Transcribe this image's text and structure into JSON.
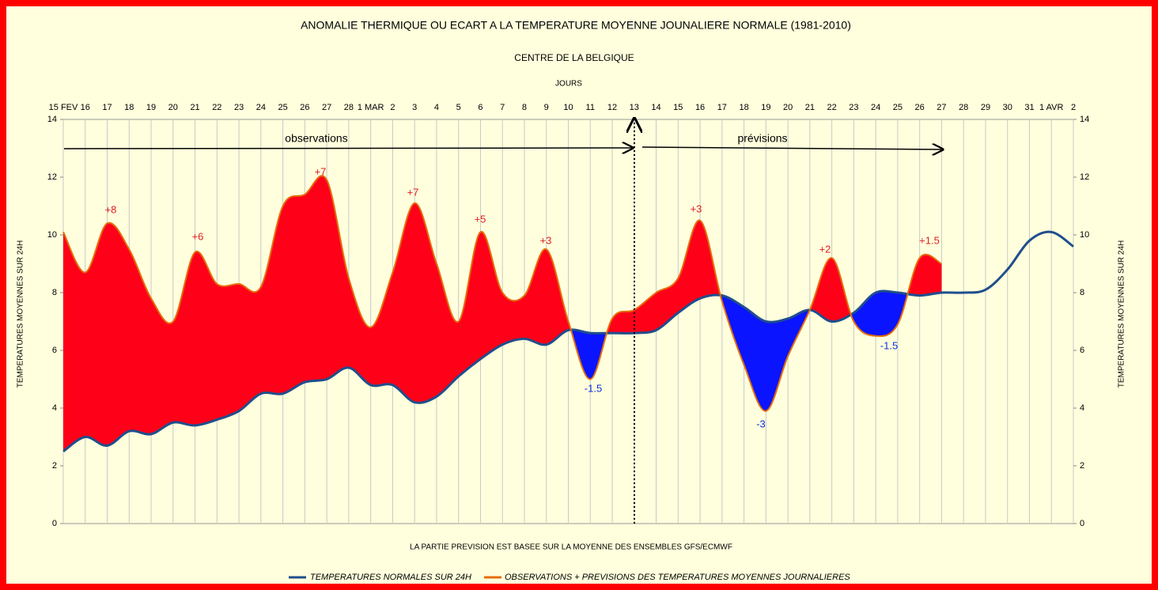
{
  "chart_data": {
    "type": "line",
    "title": "ANOMALIE THERMIQUE OU ECART A LA TEMPERATURE MOYENNE JOUNALIERE NORMALE (1981-2010)",
    "subtitle": "CENTRE DE LA BELGIQUE",
    "xlabel": "JOURS",
    "ylabel": "TEMPERATURES MOYENNES SUR 24H",
    "y2label": "TEMPERATURES MOYENNES SUR 24H",
    "footnote": "LA PARTIE PREVISION EST BASEE SUR LA MOYENNE DES ENSEMBLES GFS/ECMWF",
    "phases": [
      "observations",
      "prévisions"
    ],
    "categories": [
      "15 FEV",
      "16",
      "17",
      "18",
      "19",
      "20",
      "21",
      "22",
      "23",
      "24",
      "25",
      "26",
      "27",
      "28",
      "1 MAR",
      "2",
      "3",
      "4",
      "5",
      "6",
      "7",
      "8",
      "9",
      "10",
      "11",
      "12",
      "13",
      "14",
      "15",
      "16",
      "17",
      "18",
      "19",
      "20",
      "21",
      "22",
      "23",
      "24",
      "25",
      "26",
      "27",
      "28",
      "29",
      "30",
      "31",
      "1 AVR",
      "2"
    ],
    "series": [
      {
        "name": "TEMPERATURES NORMALES SUR 24H",
        "color": "#1f4e8c",
        "values": [
          2.5,
          3.0,
          2.7,
          3.2,
          3.1,
          3.5,
          3.4,
          3.6,
          3.9,
          4.5,
          4.5,
          4.9,
          5.0,
          5.4,
          4.8,
          4.8,
          4.2,
          4.4,
          5.1,
          5.7,
          6.2,
          6.4,
          6.2,
          6.7,
          6.6,
          6.6,
          6.6,
          6.7,
          7.3,
          7.8,
          7.9,
          7.5,
          7.0,
          7.1,
          7.4,
          7.0,
          7.3,
          8.0,
          8.0,
          7.9,
          8.0,
          8.0,
          8.1,
          8.8,
          9.8,
          10.1,
          9.6
        ]
      },
      {
        "name": "OBSERVATIONS + PREVISIONS DES TEMPERATURES MOYENNES JOURNALIERES",
        "color": "#e46c0a",
        "values": [
          10.1,
          8.7,
          10.4,
          9.5,
          7.8,
          7.0,
          9.4,
          8.3,
          8.3,
          8.2,
          11.0,
          11.4,
          11.9,
          8.5,
          6.8,
          8.7,
          11.1,
          9.0,
          7.0,
          10.1,
          8.0,
          7.9,
          9.5,
          7.0,
          5.0,
          7.1,
          7.4,
          8.0,
          8.5,
          10.5,
          7.7,
          5.5,
          3.9,
          5.8,
          7.4,
          9.2,
          7.0,
          6.5,
          6.9,
          9.2,
          9.0,
          null,
          null,
          null,
          null,
          null,
          null
        ]
      }
    ],
    "above_color": "#ff0019",
    "below_color": "#0a14ff",
    "ylim": [
      0,
      14
    ],
    "yticks": [
      0,
      2,
      4,
      6,
      8,
      10,
      12,
      14
    ],
    "y2lim": [
      0,
      14
    ],
    "y2ticks": [
      0,
      2,
      4,
      6,
      8,
      10,
      12,
      14
    ],
    "grid": true,
    "annotations": [
      {
        "text": "+8",
        "color": "#e02020"
      },
      {
        "text": "+6",
        "color": "#e02020"
      },
      {
        "text": "+7",
        "color": "#e02020"
      },
      {
        "text": "+7",
        "color": "#e02020"
      },
      {
        "text": "+5",
        "color": "#e02020"
      },
      {
        "text": "+3",
        "color": "#e02020"
      },
      {
        "text": "-1.5",
        "color": "#1030e0"
      },
      {
        "text": "+3",
        "color": "#e02020"
      },
      {
        "text": "-3",
        "color": "#1030e0"
      },
      {
        "text": "+2",
        "color": "#e02020"
      },
      {
        "text": "-1.5",
        "color": "#1030e0"
      },
      {
        "text": "+1.5",
        "color": "#e02020"
      }
    ]
  }
}
